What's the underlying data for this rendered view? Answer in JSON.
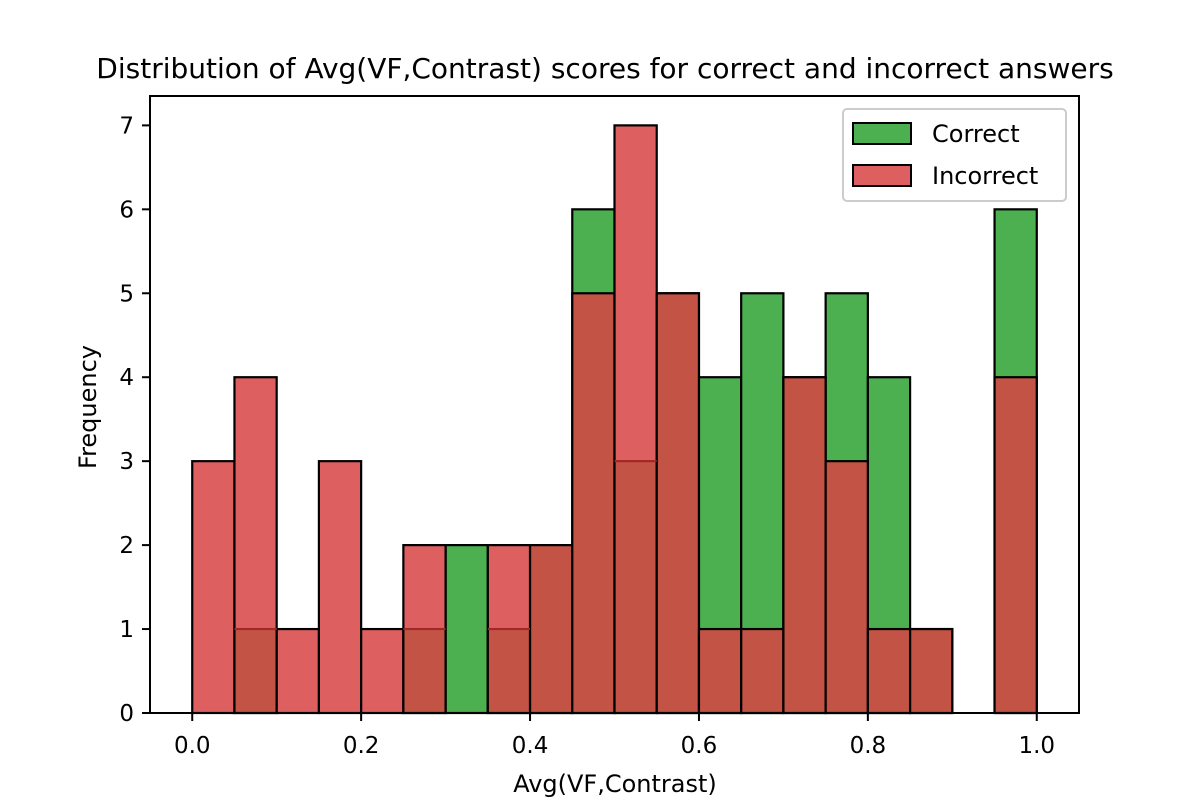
{
  "chart_data": {
    "type": "bar",
    "title": "Distribution of Avg(VF,Contrast) scores for correct and incorrect answers",
    "xlabel": "Avg(VF,Contrast)",
    "ylabel": "Frequency",
    "xlim": [
      -0.05,
      1.05
    ],
    "ylim": [
      0,
      7.35
    ],
    "bin_width": 0.05,
    "bin_starts": [
      0.0,
      0.05,
      0.1,
      0.15,
      0.2,
      0.25,
      0.3,
      0.35,
      0.4,
      0.45,
      0.5,
      0.55,
      0.6,
      0.65,
      0.7,
      0.75,
      0.8,
      0.85,
      0.9,
      0.95
    ],
    "x_ticks": [
      0.0,
      0.2,
      0.4,
      0.6,
      0.8,
      1.0
    ],
    "x_tick_labels": [
      "0.0",
      "0.2",
      "0.4",
      "0.6",
      "0.8",
      "1.0"
    ],
    "y_ticks": [
      0,
      1,
      2,
      3,
      4,
      5,
      6,
      7
    ],
    "y_tick_labels": [
      "0",
      "1",
      "2",
      "3",
      "4",
      "5",
      "6",
      "7"
    ],
    "grid": false,
    "legend_position": "top-right",
    "series": [
      {
        "name": "Correct",
        "color": "#4caf50",
        "values": [
          0,
          1,
          0,
          0,
          0,
          1,
          2,
          1,
          2,
          6,
          3,
          5,
          4,
          5,
          4,
          5,
          4,
          1,
          0,
          6
        ]
      },
      {
        "name": "Incorrect",
        "color": "#d84343",
        "values": [
          3,
          4,
          1,
          3,
          1,
          2,
          0,
          2,
          2,
          5,
          7,
          5,
          1,
          1,
          4,
          3,
          1,
          1,
          0,
          4
        ]
      }
    ]
  }
}
